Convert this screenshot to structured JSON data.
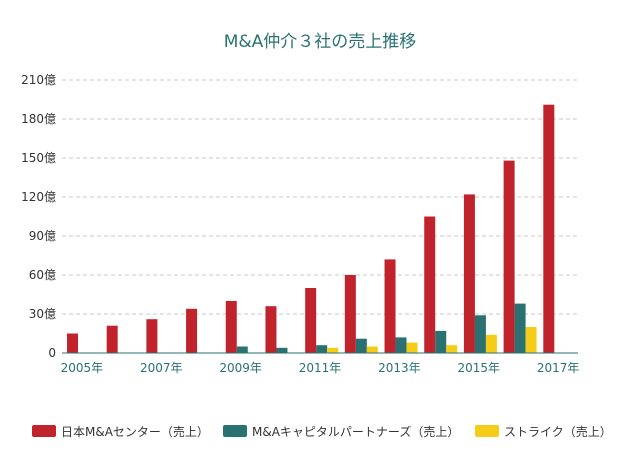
{
  "chart_data": {
    "type": "bar",
    "title": "M&A仲介３社の売上推移",
    "xlabel": "",
    "ylabel": "",
    "categories": [
      "2005年",
      "2006年",
      "2007年",
      "2008年",
      "2009年",
      "2010年",
      "2011年",
      "2012年",
      "2013年",
      "2014年",
      "2015年",
      "2016年",
      "2017年"
    ],
    "x_tick_labels": [
      "2005年",
      "",
      "2007年",
      "",
      "2009年",
      "",
      "2011年",
      "",
      "2013年",
      "",
      "2015年",
      "",
      "2017年"
    ],
    "ylim": [
      0,
      210
    ],
    "y_ticks": [
      0,
      30,
      60,
      90,
      120,
      150,
      180,
      210
    ],
    "y_tick_labels": [
      "0",
      "30億",
      "60億",
      "90億",
      "120億",
      "150億",
      "180億",
      "210億"
    ],
    "grid": true,
    "legend_position": "bottom",
    "series": [
      {
        "name": "日本M&Aセンター（売上）",
        "color": "#c0232c",
        "values": [
          15,
          21,
          26,
          34,
          40,
          36,
          50,
          60,
          72,
          105,
          122,
          148,
          191
        ]
      },
      {
        "name": "M&Aキャピタルパートナーズ（売上）",
        "color": "#2a7272",
        "values": [
          null,
          null,
          null,
          null,
          5,
          4,
          6,
          11,
          12,
          17,
          29,
          38,
          null
        ]
      },
      {
        "name": "ストライク（売上）",
        "color": "#f5cd19",
        "values": [
          null,
          null,
          null,
          null,
          null,
          null,
          4,
          5,
          8,
          6,
          14,
          20,
          null
        ]
      }
    ]
  }
}
